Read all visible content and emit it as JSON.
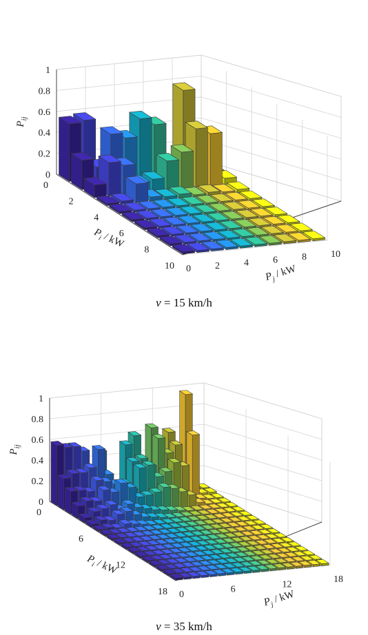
{
  "chart_data": [
    {
      "type": "bar3d",
      "title": "",
      "caption": {
        "var": "v",
        "text": " = 15 km/h"
      },
      "zlabel": "Pij",
      "zlabel_base": "P",
      "zlabel_sub": "ij",
      "xlabel": "Pi / kW",
      "xlabel_base": "P",
      "xlabel_sub": "i",
      "xlabel_unit": " / kW",
      "ylabel": "Pj / kW",
      "ylabel_base": "P",
      "ylabel_sub": "j",
      "ylabel_unit": " / kW",
      "zticks": [
        "0",
        "0.2",
        "0.4",
        "0.6",
        "0.8",
        "1"
      ],
      "xticks": [
        "0",
        "2",
        "4",
        "6",
        "8",
        "10"
      ],
      "yticks": [
        "0",
        "2",
        "4",
        "6",
        "8",
        "10"
      ],
      "grid_size": 10,
      "zlim": [
        0,
        1
      ],
      "colormap": "parula",
      "grid": true,
      "values": [
        [
          0.55,
          0.57,
          0.05,
          0.15,
          0.1,
          0.12,
          0.06,
          0.04,
          0.03,
          0.02
        ],
        [
          0.28,
          0.2,
          0.5,
          0.45,
          0.62,
          0.55,
          0.1,
          0.85,
          0.08,
          0.05
        ],
        [
          0.12,
          0.32,
          0.28,
          0.1,
          0.12,
          0.28,
          0.35,
          0.56,
          0.5,
          0.06
        ],
        [
          0.02,
          0.03,
          0.18,
          0.04,
          0.03,
          0.04,
          0.02,
          0.03,
          0.02,
          0.03
        ],
        [
          0.02,
          0.02,
          0.02,
          0.02,
          0.02,
          0.02,
          0.02,
          0.02,
          0.02,
          0.02
        ],
        [
          0.02,
          0.02,
          0.02,
          0.02,
          0.02,
          0.02,
          0.02,
          0.02,
          0.02,
          0.02
        ],
        [
          0.02,
          0.02,
          0.02,
          0.02,
          0.02,
          0.02,
          0.02,
          0.02,
          0.02,
          0.02
        ],
        [
          0.02,
          0.02,
          0.02,
          0.02,
          0.02,
          0.02,
          0.02,
          0.02,
          0.02,
          0.02
        ],
        [
          0.02,
          0.02,
          0.02,
          0.02,
          0.02,
          0.02,
          0.02,
          0.02,
          0.02,
          0.02
        ],
        [
          0.02,
          0.02,
          0.02,
          0.02,
          0.02,
          0.02,
          0.02,
          0.02,
          0.02,
          0.02
        ]
      ]
    },
    {
      "type": "bar3d",
      "title": "",
      "caption": {
        "var": "v",
        "text": " = 35 km/h"
      },
      "zlabel": "Pij",
      "zlabel_base": "P",
      "zlabel_sub": "ij",
      "xlabel": "Pi / kW",
      "xlabel_base": "P",
      "xlabel_sub": "i",
      "xlabel_unit": " / kW",
      "ylabel": "Pj / kW",
      "ylabel_base": "P",
      "ylabel_sub": "j",
      "ylabel_unit": " / kW",
      "zticks": [
        "0",
        "0.2",
        "0.4",
        "0.6",
        "0.8",
        "1"
      ],
      "xticks": [
        "0",
        "6",
        "12",
        "18"
      ],
      "yticks": [
        "0",
        "6",
        "12",
        "18"
      ],
      "grid_size": 18,
      "zlim": [
        0,
        1
      ],
      "colormap": "parula",
      "grid": true,
      "values": [
        [
          0.58,
          0.55,
          0.55,
          0.5,
          0.05,
          0.48,
          0.08,
          0.08,
          0.52,
          0.6,
          0.3,
          0.66,
          0.05,
          0.6,
          0.05,
          0.95,
          0.03,
          0.03
        ],
        [
          0.3,
          0.34,
          0.34,
          0.38,
          0.55,
          0.3,
          0.2,
          0.2,
          0.4,
          0.42,
          0.34,
          0.6,
          0.45,
          0.52,
          0.05,
          0.6,
          0.03,
          0.03
        ],
        [
          0.22,
          0.22,
          0.2,
          0.3,
          0.28,
          0.25,
          0.22,
          0.18,
          0.38,
          0.4,
          0.28,
          0.32,
          0.4,
          0.36,
          0.04,
          0.03,
          0.02,
          0.02
        ],
        [
          0.12,
          0.16,
          0.15,
          0.25,
          0.22,
          0.3,
          0.25,
          0.15,
          0.16,
          0.18,
          0.22,
          0.2,
          0.16,
          0.12,
          0.04,
          0.02,
          0.02,
          0.02
        ],
        [
          0.05,
          0.1,
          0.12,
          0.15,
          0.1,
          0.14,
          0.1,
          0.08,
          0.06,
          0.05,
          0.04,
          0.03,
          0.02,
          0.02,
          0.02,
          0.02,
          0.02,
          0.02
        ],
        [
          0.03,
          0.06,
          0.05,
          0.1,
          0.12,
          0.08,
          0.05,
          0.04,
          0.03,
          0.02,
          0.02,
          0.02,
          0.02,
          0.02,
          0.02,
          0.02,
          0.02,
          0.02
        ],
        [
          0.02,
          0.03,
          0.02,
          0.05,
          0.04,
          0.03,
          0.02,
          0.02,
          0.02,
          0.02,
          0.02,
          0.02,
          0.02,
          0.02,
          0.02,
          0.02,
          0.02,
          0.02
        ],
        [
          0.02,
          0.02,
          0.02,
          0.02,
          0.02,
          0.02,
          0.02,
          0.02,
          0.02,
          0.02,
          0.02,
          0.02,
          0.02,
          0.02,
          0.02,
          0.02,
          0.02,
          0.02
        ],
        [
          0.02,
          0.02,
          0.02,
          0.02,
          0.02,
          0.02,
          0.02,
          0.02,
          0.02,
          0.02,
          0.02,
          0.02,
          0.02,
          0.02,
          0.02,
          0.02,
          0.02,
          0.02
        ],
        [
          0.02,
          0.02,
          0.02,
          0.02,
          0.02,
          0.02,
          0.02,
          0.02,
          0.02,
          0.02,
          0.02,
          0.02,
          0.02,
          0.02,
          0.02,
          0.02,
          0.02,
          0.02
        ],
        [
          0.02,
          0.02,
          0.02,
          0.02,
          0.02,
          0.02,
          0.02,
          0.02,
          0.02,
          0.02,
          0.02,
          0.02,
          0.02,
          0.02,
          0.02,
          0.02,
          0.02,
          0.02
        ],
        [
          0.02,
          0.02,
          0.02,
          0.02,
          0.02,
          0.02,
          0.02,
          0.02,
          0.02,
          0.02,
          0.02,
          0.02,
          0.02,
          0.02,
          0.02,
          0.02,
          0.02,
          0.02
        ],
        [
          0.02,
          0.02,
          0.02,
          0.02,
          0.02,
          0.02,
          0.02,
          0.02,
          0.02,
          0.02,
          0.02,
          0.02,
          0.02,
          0.02,
          0.02,
          0.02,
          0.02,
          0.02
        ],
        [
          0.02,
          0.02,
          0.02,
          0.02,
          0.02,
          0.02,
          0.02,
          0.02,
          0.02,
          0.02,
          0.02,
          0.02,
          0.02,
          0.02,
          0.02,
          0.02,
          0.02,
          0.02
        ],
        [
          0.02,
          0.02,
          0.02,
          0.02,
          0.02,
          0.02,
          0.02,
          0.02,
          0.02,
          0.02,
          0.02,
          0.02,
          0.02,
          0.02,
          0.02,
          0.02,
          0.02,
          0.02
        ],
        [
          0.02,
          0.02,
          0.02,
          0.02,
          0.02,
          0.02,
          0.02,
          0.02,
          0.02,
          0.02,
          0.02,
          0.02,
          0.02,
          0.02,
          0.02,
          0.02,
          0.02,
          0.02
        ],
        [
          0.02,
          0.02,
          0.02,
          0.02,
          0.02,
          0.02,
          0.02,
          0.02,
          0.02,
          0.02,
          0.02,
          0.02,
          0.02,
          0.02,
          0.02,
          0.02,
          0.02,
          0.02
        ],
        [
          0.02,
          0.02,
          0.02,
          0.02,
          0.02,
          0.02,
          0.02,
          0.02,
          0.02,
          0.02,
          0.02,
          0.02,
          0.02,
          0.02,
          0.02,
          0.02,
          0.02,
          0.02
        ]
      ]
    }
  ]
}
